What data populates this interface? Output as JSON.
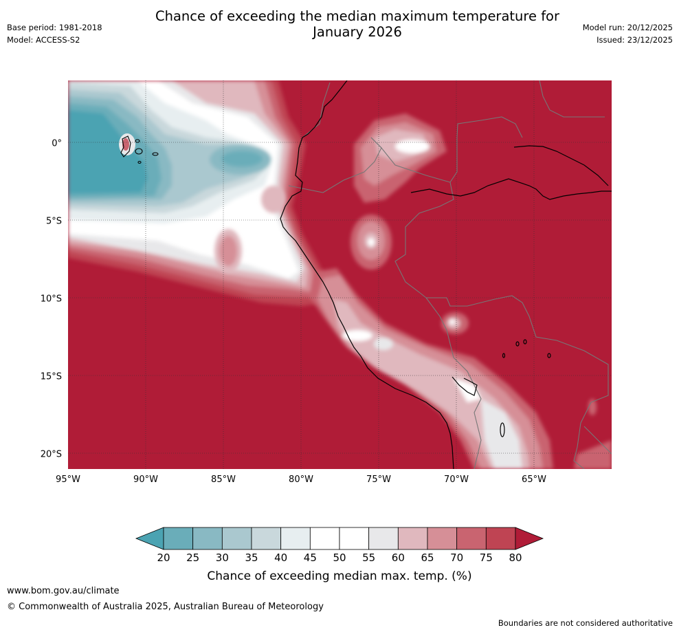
{
  "title_line1": "Chance of exceeding the median maximum temperature for",
  "title_line2": "January 2026",
  "base_period": "Base period: 1981-2018",
  "model": "Model: ACCESS-S2",
  "model_run": "Model run: 20/12/2025",
  "issued": "Issued: 23/12/2025",
  "website": "www.bom.gov.au/climate",
  "copyright": "© Commonwealth of Australia 2025, Australian Bureau of Meteorology",
  "disclaimer": "Boundaries are not considered authoritative",
  "map": {
    "lat_labels": [
      "0°",
      "5°S",
      "10°S",
      "15°S",
      "20°S"
    ],
    "lat_values": [
      0,
      -5,
      -10,
      -15,
      -20
    ],
    "lon_labels": [
      "95°W",
      "90°W",
      "85°W",
      "80°W",
      "75°W",
      "70°W",
      "65°W"
    ],
    "lon_values": [
      -95,
      -90,
      -85,
      -80,
      -75,
      -70,
      -65
    ],
    "lon_range": [
      -95,
      -60
    ],
    "lat_range": [
      -21,
      4
    ]
  },
  "colorbar": {
    "label": "Chance of exceeding median max. temp. (%)",
    "ticks": [
      "20",
      "25",
      "30",
      "35",
      "40",
      "45",
      "50",
      "55",
      "60",
      "65",
      "70",
      "75",
      "80"
    ],
    "colors": {
      "below_20": "#4ba3b2",
      "b20_25": "#6aadb9",
      "b25_30": "#89b9c3",
      "b30_35": "#aac8cf",
      "b35_40": "#c9d8dc",
      "b40_45": "#e7eef0",
      "b45_50": "#ffffff",
      "b50_55": "#ffffff",
      "b55_60": "#e8e8ea",
      "b60_65": "#e0b8be",
      "b65_70": "#d68f97",
      "b70_75": "#c96470",
      "b75_80": "#bf4453",
      "above_80": "#b01c37"
    }
  }
}
